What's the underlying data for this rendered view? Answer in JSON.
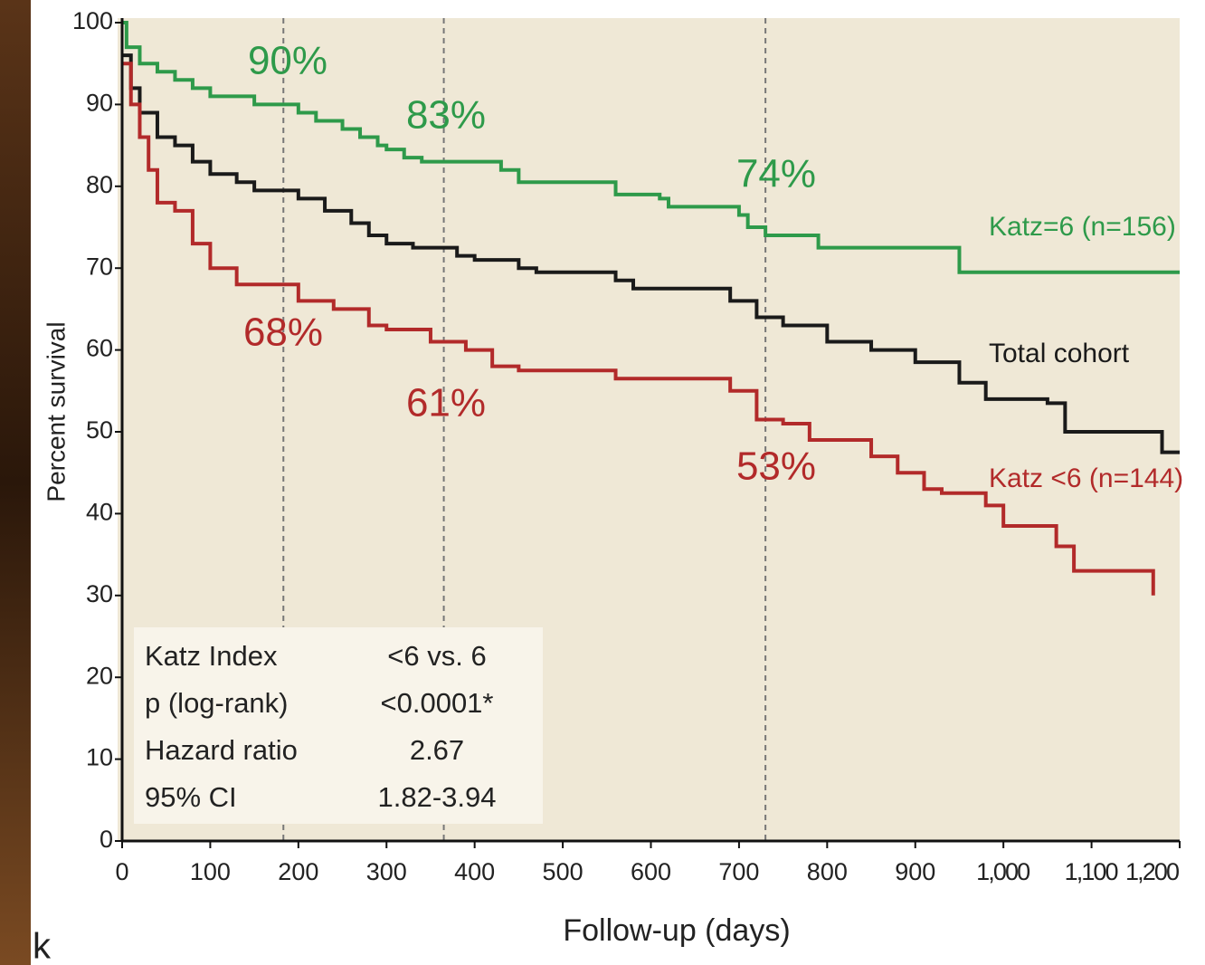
{
  "side_text": "k",
  "chart_data": {
    "type": "line",
    "step": true,
    "x_label": "Follow-up (days)",
    "y_label": "Percent survival",
    "xlim": [
      0,
      1200
    ],
    "ylim": [
      0,
      100
    ],
    "xticks": [
      0,
      100,
      200,
      300,
      400,
      500,
      600,
      700,
      800,
      900,
      {
        "value": 1000,
        "label": "1,000"
      },
      {
        "value": 1100,
        "label": "1,100"
      },
      {
        "value": 1200,
        "label": "1,200"
      }
    ],
    "yticks": [
      0,
      10,
      20,
      30,
      40,
      50,
      60,
      70,
      80,
      90,
      100
    ],
    "reference_x": [
      183,
      365,
      730
    ],
    "series": [
      {
        "name": "Katz=6 (n=156)",
        "color": "#2e9a4a",
        "x": [
          0,
          5,
          20,
          40,
          60,
          80,
          100,
          150,
          200,
          220,
          250,
          270,
          290,
          300,
          320,
          340,
          430,
          450,
          560,
          610,
          620,
          700,
          710,
          730,
          790,
          950,
          1200
        ],
        "values": [
          100,
          97,
          95,
          94,
          93,
          92,
          91,
          90,
          89,
          88,
          87,
          86,
          85,
          84.5,
          83.5,
          83,
          82,
          80.5,
          79,
          78.5,
          77.5,
          76.5,
          75,
          74,
          72.5,
          69.5,
          69.5
        ]
      },
      {
        "name": "Total cohort",
        "color": "#1a1a1a",
        "x": [
          0,
          10,
          20,
          40,
          60,
          80,
          100,
          130,
          150,
          200,
          230,
          260,
          280,
          300,
          330,
          380,
          400,
          450,
          470,
          560,
          580,
          690,
          720,
          750,
          800,
          850,
          900,
          950,
          980,
          1050,
          1070,
          1180,
          1200
        ],
        "values": [
          96,
          92,
          89,
          86,
          85,
          83,
          81.5,
          80.5,
          79.5,
          78.5,
          77,
          75.5,
          74,
          73,
          72.5,
          71.5,
          71,
          70,
          69.5,
          68.5,
          67.5,
          66,
          64,
          63,
          61,
          60,
          58.5,
          56,
          54,
          53.5,
          50,
          47.5,
          47.5
        ]
      },
      {
        "name": "Katz <6 (n=144)",
        "color": "#b22a2a",
        "x": [
          0,
          10,
          20,
          30,
          40,
          60,
          80,
          100,
          130,
          200,
          240,
          280,
          300,
          350,
          390,
          420,
          450,
          560,
          690,
          720,
          750,
          780,
          850,
          880,
          910,
          930,
          980,
          1000,
          1060,
          1080,
          1170
        ],
        "values": [
          95,
          90,
          86,
          82,
          78,
          77,
          73,
          70,
          68,
          66,
          65,
          63,
          62.5,
          61,
          60,
          58,
          57.5,
          56.5,
          55,
          51.5,
          51,
          49,
          47,
          45,
          43,
          42.5,
          41,
          38.5,
          36,
          33,
          30
        ]
      }
    ],
    "annotations": [
      "90%",
      "83%",
      "74%",
      "68%",
      "61%",
      "53%"
    ],
    "stats_table": [
      [
        "Katz Index",
        "<6 vs. 6"
      ],
      [
        "p (log-rank)",
        "<0.0001*"
      ],
      [
        "Hazard ratio",
        "2.67"
      ],
      [
        "95% CI",
        "1.82-3.94"
      ]
    ]
  }
}
